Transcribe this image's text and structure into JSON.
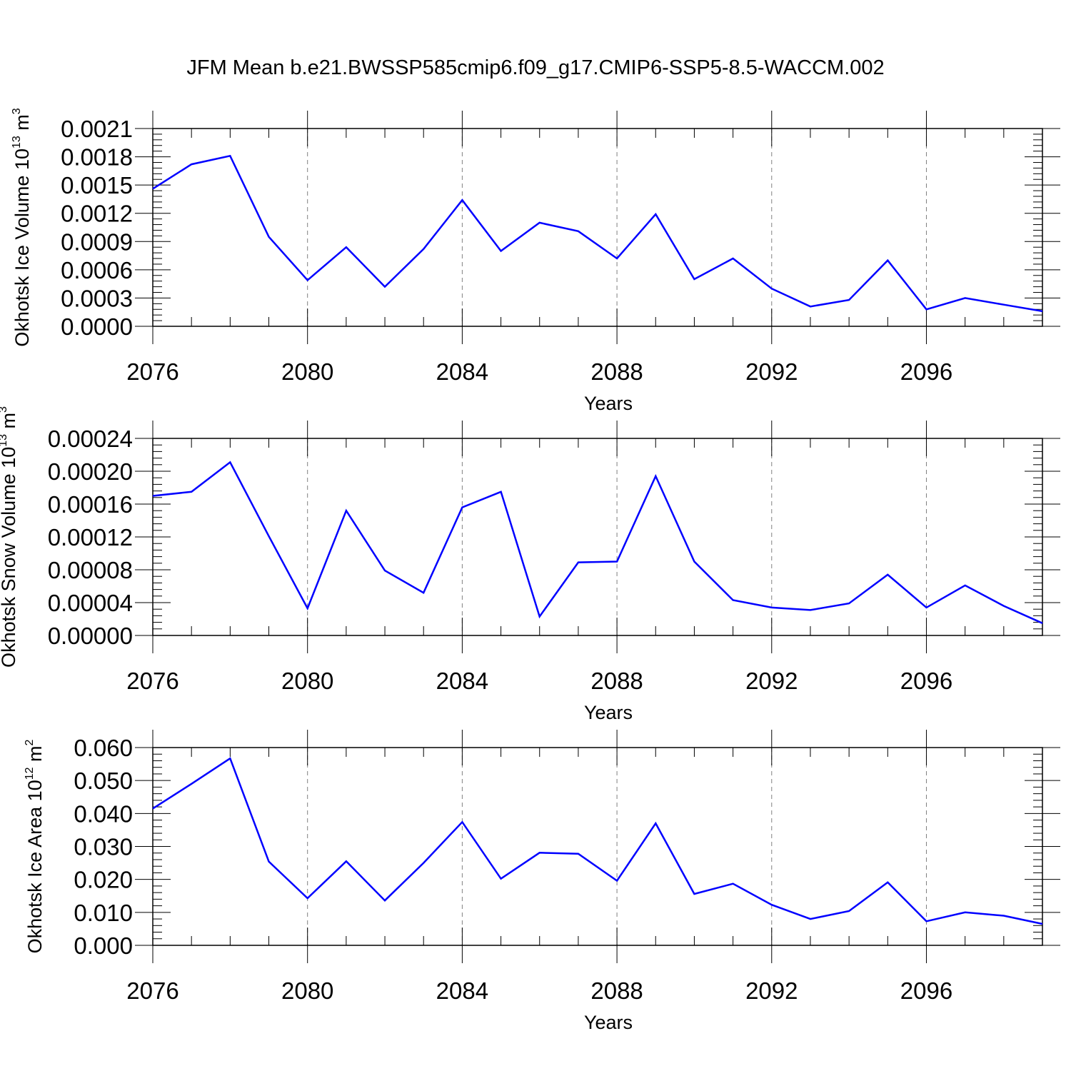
{
  "title": "JFM Mean b.e21.BWSSP585cmip6.f09_g17.CMIP6-SSP5-8.5-WACCM.002",
  "chart_data": [
    {
      "type": "line",
      "ylabel": "Okhotsk Ice Volume 10",
      "ylabel_exp": "13",
      "ylabel_unit": " m",
      "ylabel_unit_exp": "3",
      "xlabel": "Years",
      "xlim": [
        2076,
        2099
      ],
      "ylim": [
        0,
        0.0021
      ],
      "xticks": [
        2076,
        2080,
        2084,
        2088,
        2092,
        2096
      ],
      "yticks": [
        0.0,
        0.0003,
        0.0006,
        0.0009,
        0.0012,
        0.0015,
        0.0018,
        0.0021
      ],
      "ytick_labels": [
        "0.0000",
        "0.0003",
        "0.0006",
        "0.0009",
        "0.0012",
        "0.0015",
        "0.0018",
        "0.0021"
      ],
      "x": [
        2076,
        2077,
        2078,
        2079,
        2080,
        2081,
        2082,
        2083,
        2084,
        2085,
        2086,
        2087,
        2088,
        2089,
        2090,
        2091,
        2092,
        2093,
        2094,
        2095,
        2096,
        2097,
        2098,
        2099
      ],
      "series": [
        {
          "values": [
            0.00146,
            0.00172,
            0.00181,
            0.00095,
            0.00049,
            0.00084,
            0.00042,
            0.00082,
            0.00134,
            0.0008,
            0.0011,
            0.00101,
            0.00072,
            0.00119,
            0.0005,
            0.00072,
            0.0004,
            0.00021,
            0.00028,
            0.0007,
            0.00018,
            0.0003,
            0.00023,
            0.00016
          ]
        }
      ]
    },
    {
      "type": "line",
      "ylabel": "Okhotsk Snow Volume 10",
      "ylabel_exp": "13",
      "ylabel_unit": " m",
      "ylabel_unit_exp": "3",
      "xlabel": "Years",
      "xlim": [
        2076,
        2099
      ],
      "ylim": [
        0,
        0.00024
      ],
      "xticks": [
        2076,
        2080,
        2084,
        2088,
        2092,
        2096
      ],
      "yticks": [
        0.0,
        4e-05,
        8e-05,
        0.00012,
        0.00016,
        0.0002,
        0.00024
      ],
      "ytick_labels": [
        "0.00000",
        "0.00004",
        "0.00008",
        "0.00012",
        "0.00016",
        "0.00020",
        "0.00024"
      ],
      "x": [
        2076,
        2077,
        2078,
        2079,
        2080,
        2081,
        2082,
        2083,
        2084,
        2085,
        2086,
        2087,
        2088,
        2089,
        2090,
        2091,
        2092,
        2093,
        2094,
        2095,
        2096,
        2097,
        2098,
        2099
      ],
      "series": [
        {
          "values": [
            0.00017,
            0.000175,
            0.000211,
            0.000121,
            3.3e-05,
            0.000152,
            7.9e-05,
            5.2e-05,
            0.000156,
            0.000175,
            2.3e-05,
            8.9e-05,
            9e-05,
            0.000194,
            9e-05,
            4.3e-05,
            3.4e-05,
            3.1e-05,
            3.9e-05,
            7.4e-05,
            3.4e-05,
            6.1e-05,
            3.6e-05,
            1.5e-05
          ]
        }
      ]
    },
    {
      "type": "line",
      "ylabel": "Okhotsk Ice Area 10",
      "ylabel_exp": "12",
      "ylabel_unit": " m",
      "ylabel_unit_exp": "2",
      "xlabel": "Years",
      "xlim": [
        2076,
        2099
      ],
      "ylim": [
        0,
        0.06
      ],
      "xticks": [
        2076,
        2080,
        2084,
        2088,
        2092,
        2096
      ],
      "yticks": [
        0.0,
        0.01,
        0.02,
        0.03,
        0.04,
        0.05,
        0.06
      ],
      "ytick_labels": [
        "0.000",
        "0.010",
        "0.020",
        "0.030",
        "0.040",
        "0.050",
        "0.060"
      ],
      "x": [
        2076,
        2077,
        2078,
        2079,
        2080,
        2081,
        2082,
        2083,
        2084,
        2085,
        2086,
        2087,
        2088,
        2089,
        2090,
        2091,
        2092,
        2093,
        2094,
        2095,
        2096,
        2097,
        2098,
        2099
      ],
      "series": [
        {
          "values": [
            0.0415,
            0.049,
            0.0567,
            0.0254,
            0.0143,
            0.0255,
            0.0136,
            0.025,
            0.0374,
            0.0202,
            0.0281,
            0.0278,
            0.0196,
            0.037,
            0.0156,
            0.0187,
            0.0123,
            0.008,
            0.0104,
            0.0191,
            0.0073,
            0.01,
            0.009,
            0.0065
          ]
        }
      ]
    }
  ],
  "colors": {
    "line": "#0000ff",
    "axis": "#000000",
    "grid": "#808080"
  }
}
